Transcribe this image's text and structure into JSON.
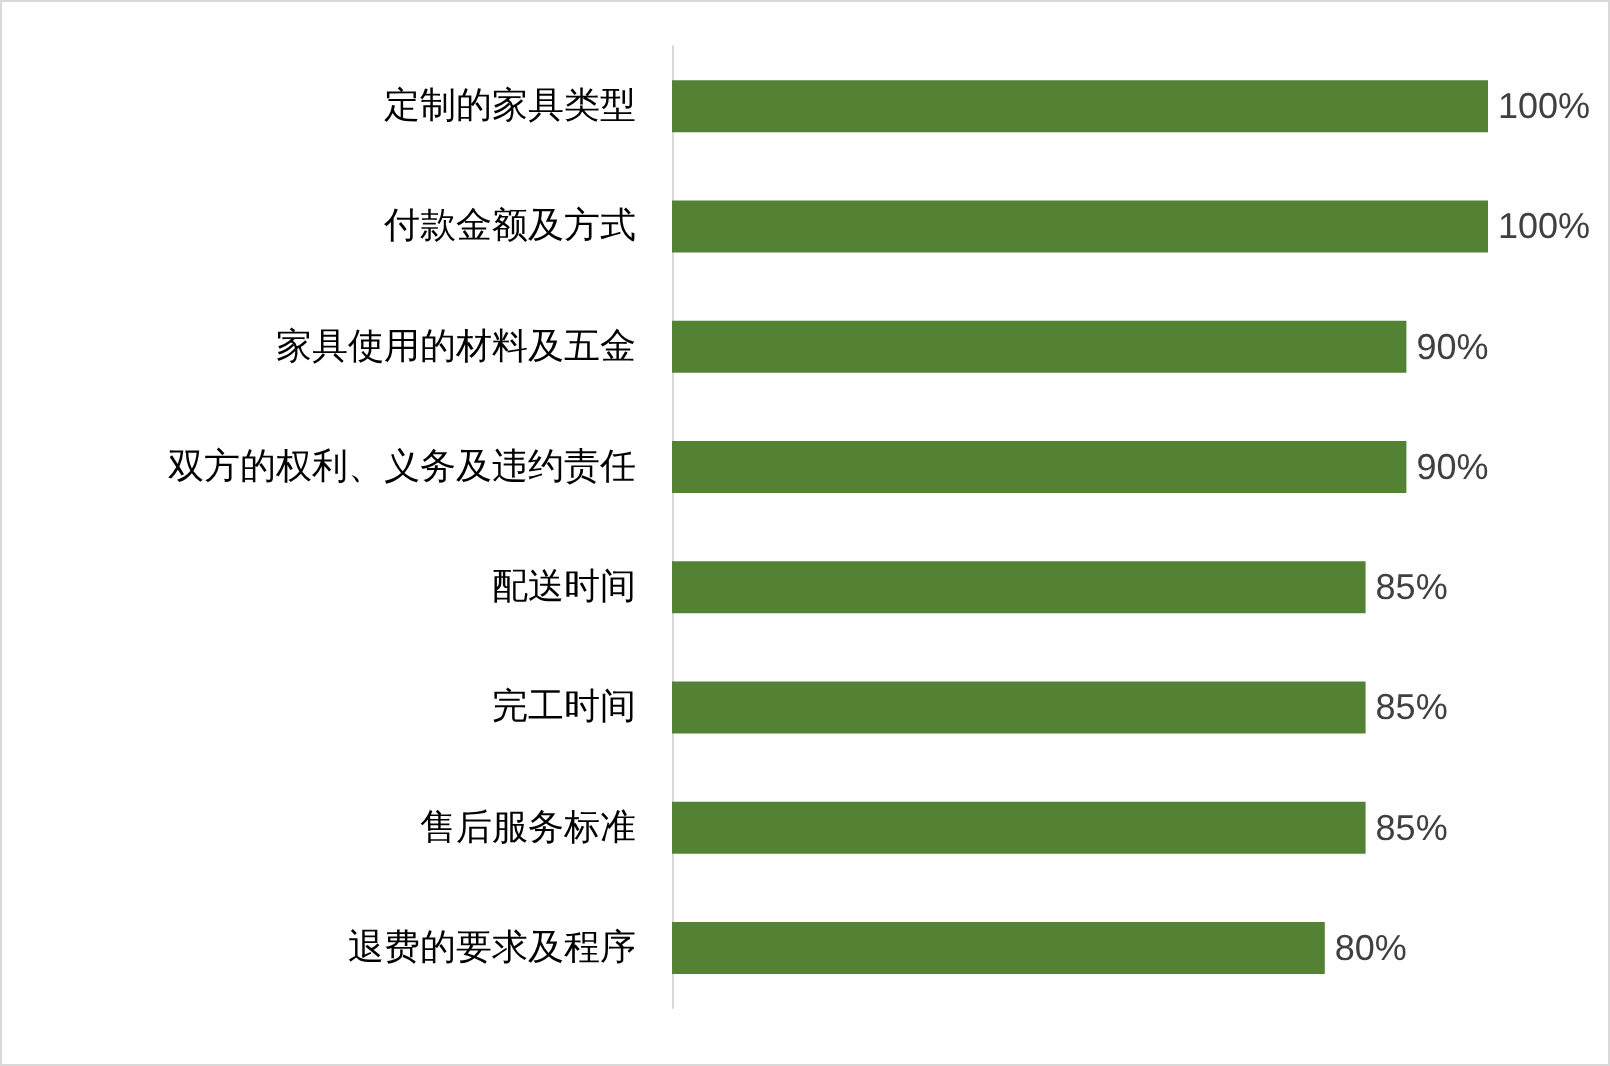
{
  "chart_data": {
    "type": "bar",
    "orientation": "horizontal",
    "categories": [
      "定制的家具类型",
      "付款金额及方式",
      "家具使用的材料及五金",
      "双方的权利、义务及违约责任",
      "配送时间",
      "完工时间",
      "售后服务标准",
      "退费的要求及程序"
    ],
    "values": [
      100,
      100,
      90,
      90,
      85,
      85,
      85,
      80
    ],
    "value_labels": [
      "100%",
      "100%",
      "90%",
      "90%",
      "85%",
      "85%",
      "85%",
      "80%"
    ],
    "color": "#548235",
    "xlim": [
      0,
      100
    ],
    "tick_labels": "y"
  }
}
